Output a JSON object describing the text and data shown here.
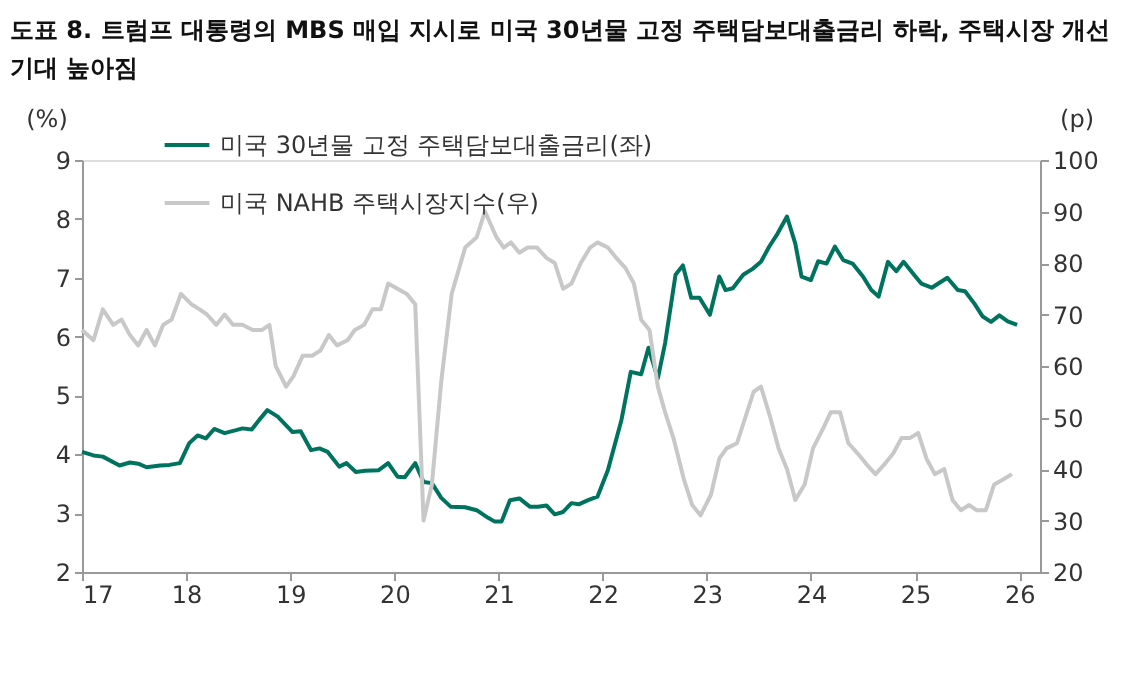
{
  "chart_data": {
    "type": "line",
    "title": "도표 8. 트럼프 대통령의 MBS 매입 지시로 미국 30년물 고정 주택담보대출금리 하락, 주택시장 개선\n기대 높아짐",
    "ylabel": "(%)",
    "y2label": "(p)",
    "xlim": [
      17,
      26.2
    ],
    "xticks": [
      17,
      18,
      19,
      20,
      21,
      22,
      23,
      24,
      25,
      26
    ],
    "ylim": [
      2,
      9
    ],
    "yticks": [
      2,
      3,
      4,
      5,
      6,
      7,
      8,
      9
    ],
    "y2lim": [
      20,
      100
    ],
    "y2ticks": [
      20,
      30,
      40,
      50,
      60,
      70,
      80,
      90,
      100
    ],
    "grid": false,
    "legend": "top left",
    "marker": "none",
    "line_style": "solid",
    "series": [
      {
        "name": "미국 30년물 고정 주택담보대출금리(좌)",
        "color": "#00735f",
        "x": [
          17.0,
          17.11,
          17.2,
          17.36,
          17.46,
          17.54,
          17.62,
          17.75,
          17.84,
          17.94,
          18.03,
          18.11,
          18.19,
          18.27,
          18.37,
          18.48,
          18.54,
          18.63,
          18.7,
          18.78,
          18.88,
          19.02,
          19.1,
          19.2,
          19.28,
          19.36,
          19.47,
          19.54,
          19.63,
          19.72,
          19.85,
          19.94,
          20.03,
          20.1,
          20.2,
          20.28,
          20.36,
          20.45,
          20.54,
          20.68,
          20.79,
          20.9,
          20.96,
          21.03,
          21.11,
          21.2,
          21.3,
          21.38,
          21.46,
          21.54,
          21.62,
          21.7,
          21.77,
          21.86,
          21.95,
          22.05,
          22.18,
          22.27,
          22.37,
          22.44,
          22.53,
          22.6,
          22.7,
          22.77,
          22.85,
          22.93,
          23.03,
          23.12,
          23.18,
          23.25,
          23.35,
          23.44,
          23.52,
          23.6,
          23.68,
          23.77,
          23.85,
          23.91,
          24.0,
          24.07,
          24.15,
          24.23,
          24.31,
          24.4,
          24.5,
          24.58,
          24.65,
          24.74,
          24.82,
          24.89,
          24.99,
          25.06,
          25.16,
          25.31,
          25.41,
          25.48,
          25.57,
          25.65,
          25.73,
          25.81,
          25.89,
          25.98
        ],
        "values": [
          4.04,
          3.98,
          3.96,
          3.81,
          3.86,
          3.84,
          3.78,
          3.81,
          3.82,
          3.85,
          4.19,
          4.32,
          4.27,
          4.43,
          4.36,
          4.41,
          4.44,
          4.42,
          4.58,
          4.75,
          4.64,
          4.38,
          4.39,
          4.07,
          4.1,
          4.04,
          3.79,
          3.85,
          3.7,
          3.72,
          3.73,
          3.85,
          3.62,
          3.61,
          3.85,
          3.53,
          3.51,
          3.26,
          3.11,
          3.1,
          3.05,
          2.92,
          2.86,
          2.86,
          3.22,
          3.25,
          3.11,
          3.11,
          3.13,
          2.98,
          3.02,
          3.17,
          3.15,
          3.22,
          3.28,
          3.73,
          4.58,
          5.4,
          5.36,
          5.81,
          5.29,
          5.89,
          7.05,
          7.21,
          6.66,
          6.66,
          6.37,
          7.02,
          6.79,
          6.82,
          7.05,
          7.15,
          7.27,
          7.53,
          7.75,
          8.04,
          7.58,
          7.02,
          6.96,
          7.28,
          7.24,
          7.53,
          7.3,
          7.24,
          7.02,
          6.79,
          6.68,
          7.27,
          7.11,
          7.27,
          7.05,
          6.9,
          6.83,
          7.0,
          6.79,
          6.77,
          6.56,
          6.34,
          6.25,
          6.36,
          6.26,
          6.2
        ]
      },
      {
        "name": "미국 NAHB 주택시장지수(우)",
        "color": "#c8c8c8",
        "axis": "y2",
        "x": [
          17.0,
          17.11,
          17.2,
          17.3,
          17.38,
          17.46,
          17.54,
          17.62,
          17.7,
          17.78,
          17.86,
          17.95,
          18.05,
          18.13,
          18.2,
          18.29,
          18.37,
          18.45,
          18.54,
          18.64,
          18.73,
          18.8,
          18.86,
          18.96,
          19.03,
          19.12,
          19.21,
          19.29,
          19.37,
          19.45,
          19.55,
          19.62,
          19.71,
          19.79,
          19.87,
          19.94,
          20.12,
          20.2,
          20.28,
          20.36,
          20.45,
          20.55,
          20.68,
          20.79,
          20.87,
          20.98,
          21.05,
          21.12,
          21.2,
          21.28,
          21.37,
          21.46,
          21.54,
          21.62,
          21.7,
          21.79,
          21.88,
          21.95,
          22.05,
          22.13,
          22.22,
          22.3,
          22.37,
          22.45,
          22.53,
          22.6,
          22.68,
          22.78,
          22.86,
          22.94,
          23.04,
          23.12,
          23.19,
          23.29,
          23.37,
          23.45,
          23.52,
          23.61,
          23.69,
          23.77,
          23.85,
          23.94,
          24.02,
          24.12,
          24.19,
          24.28,
          24.36,
          24.45,
          24.53,
          24.62,
          24.71,
          24.79,
          24.87,
          24.95,
          25.03,
          25.11,
          25.19,
          25.28,
          25.36,
          25.44,
          25.52,
          25.59,
          25.68,
          25.76,
          25.85,
          25.93
        ],
        "values": [
          67,
          65,
          71,
          68,
          69,
          66,
          64,
          67,
          64,
          68,
          69,
          74,
          72,
          71,
          70,
          68,
          70,
          68,
          68,
          67,
          67,
          68,
          60,
          56,
          58,
          62,
          62,
          63,
          66,
          64,
          65,
          67,
          68,
          71,
          71,
          76,
          74,
          72,
          30,
          37,
          57,
          74,
          83,
          85,
          90,
          85,
          83,
          84,
          82,
          83,
          83,
          81,
          80,
          75,
          76,
          80,
          83,
          84,
          83,
          81,
          79,
          76,
          69,
          67,
          56,
          51,
          46,
          38,
          33,
          31,
          35,
          42,
          44,
          45,
          50,
          55,
          56,
          50,
          44,
          40,
          34,
          37,
          44,
          48,
          51,
          51,
          45,
          43,
          41,
          39,
          41,
          43,
          46,
          46,
          47,
          42,
          39,
          40,
          34,
          32,
          33,
          32,
          32,
          37,
          38,
          39
        ]
      }
    ]
  }
}
